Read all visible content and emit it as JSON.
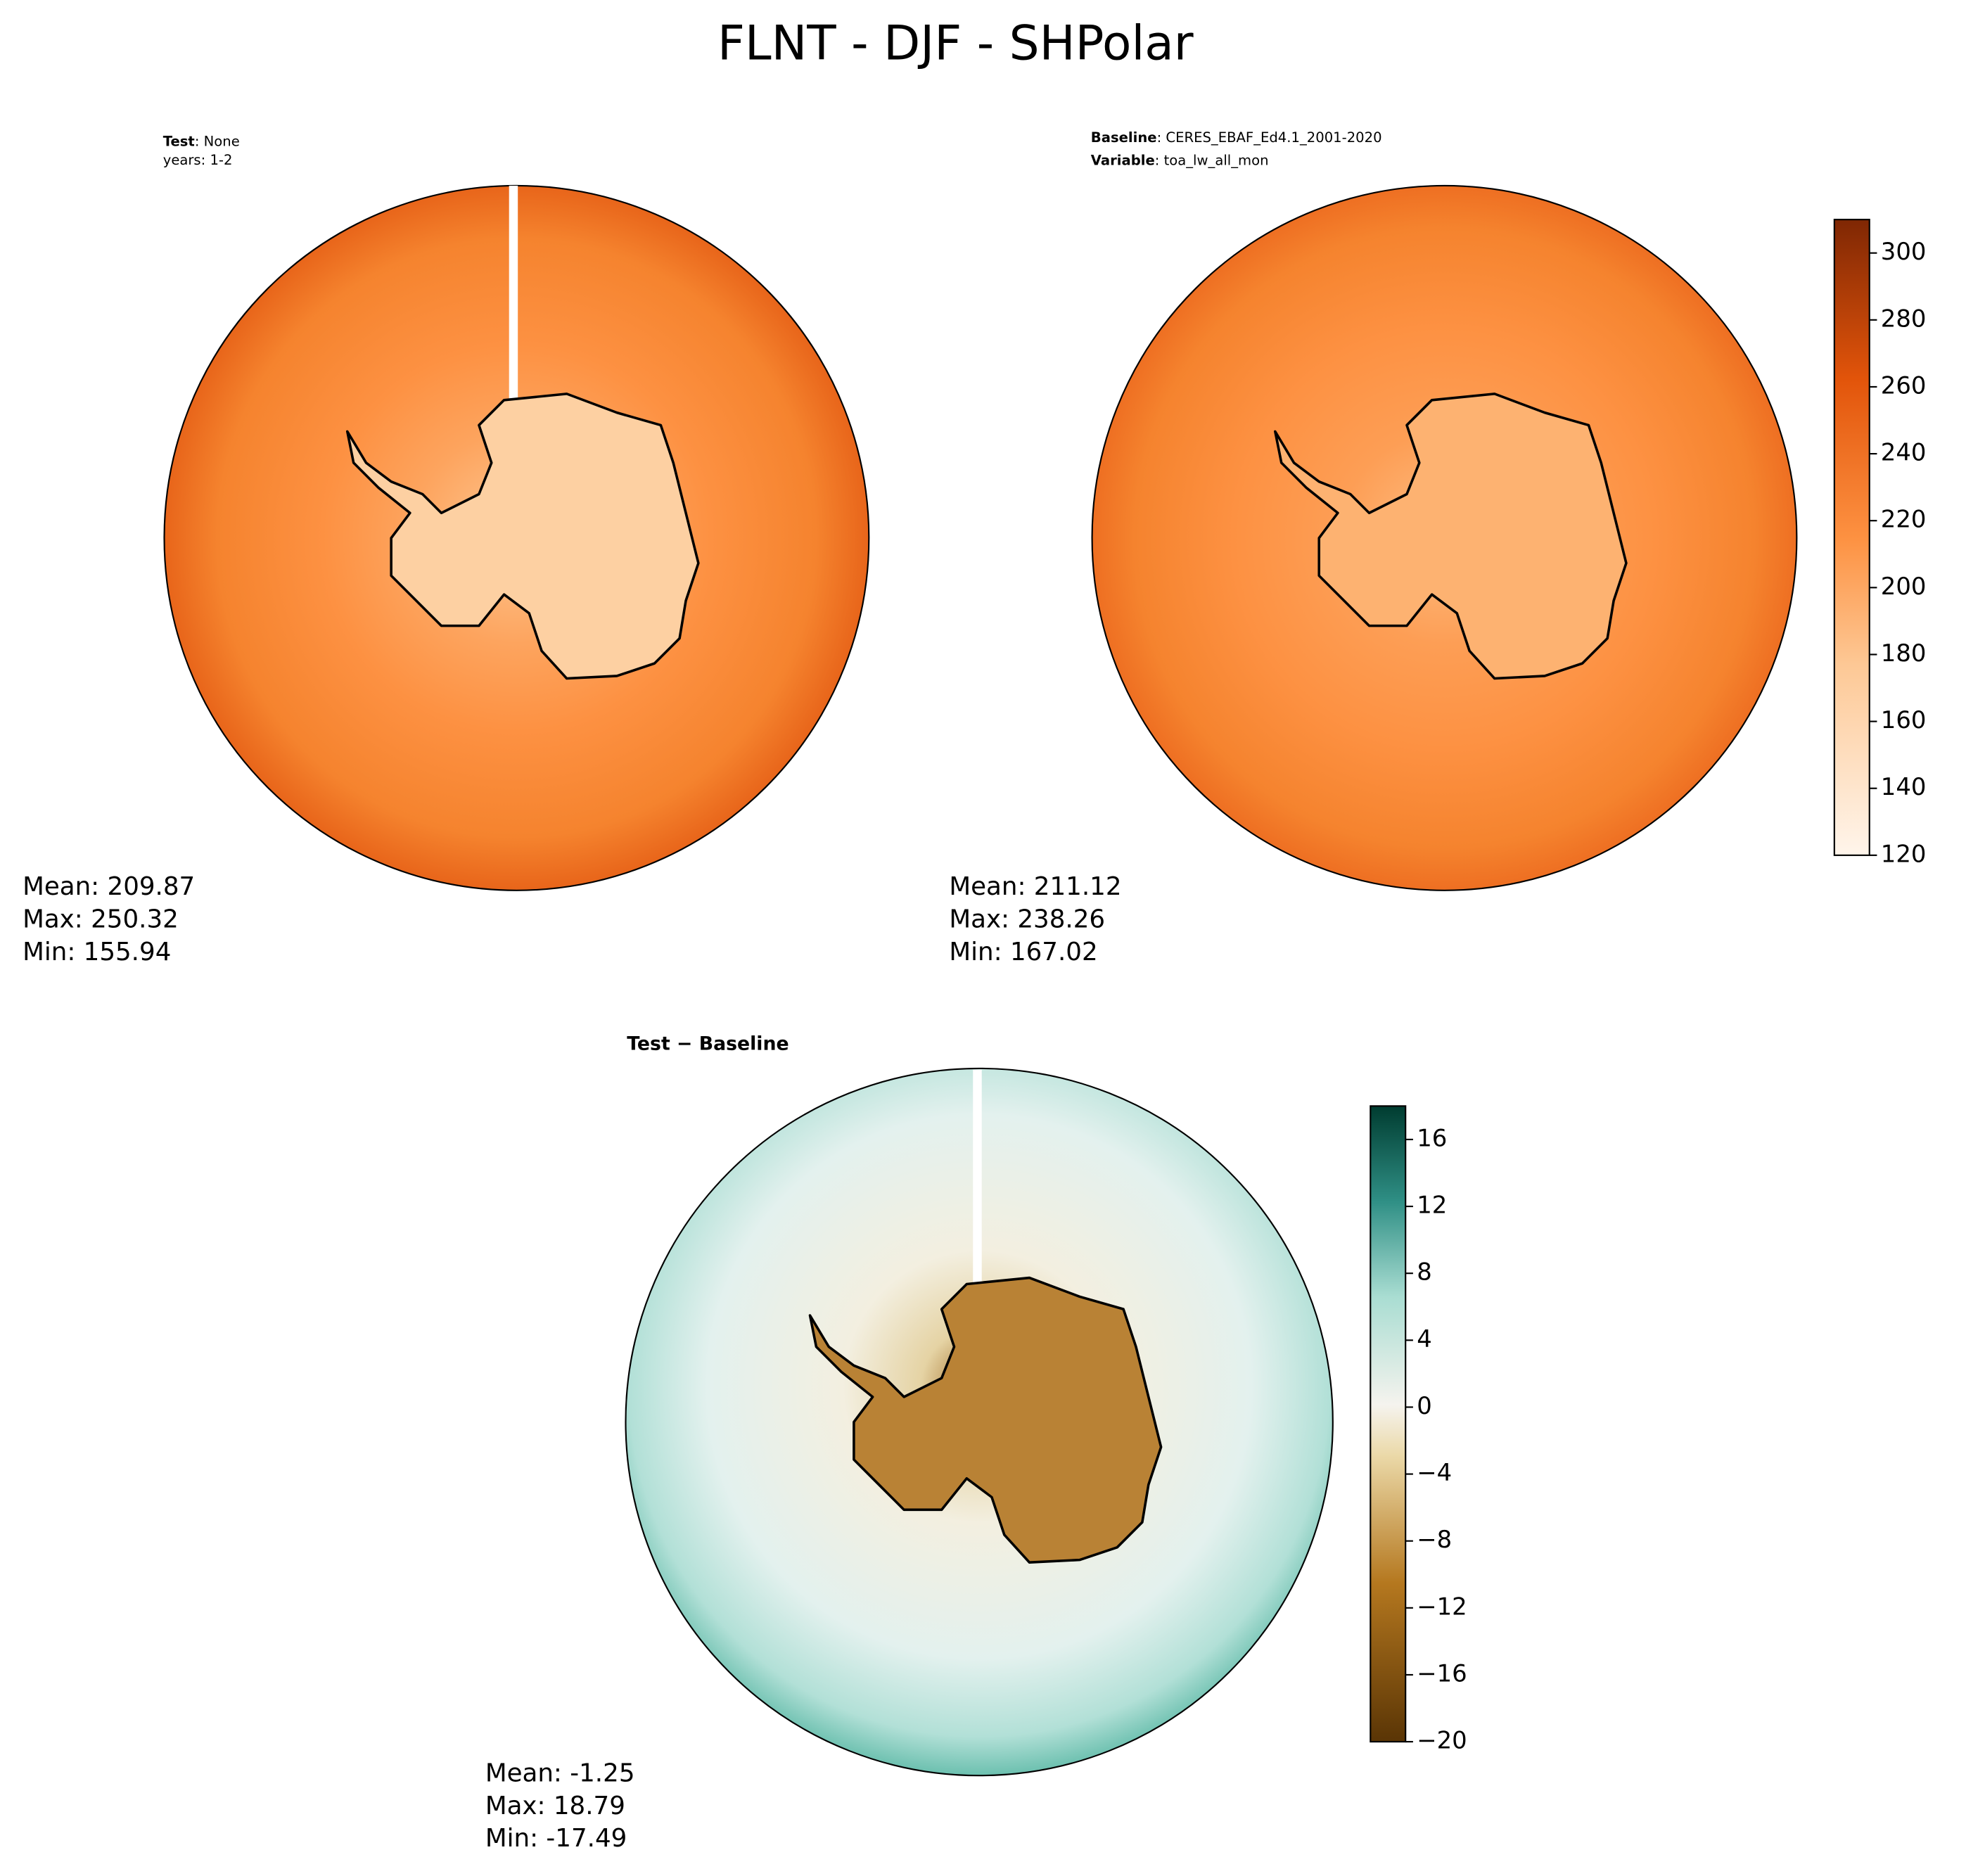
{
  "title": "FLNT - DJF - SHPolar",
  "panels": [
    {
      "header": [
        {
          "key": "Test",
          "value": ": None"
        },
        {
          "key": null,
          "value": "years: 1-2"
        }
      ],
      "stats": [
        "Mean: 209.87",
        "Max: 250.32",
        "Min: 155.94"
      ]
    },
    {
      "header": [
        {
          "key": "Baseline",
          "value": ": CERES_EBAF_Ed4.1_2001-2020"
        },
        {
          "key": "Variable",
          "value": ": toa_lw_all_mon"
        }
      ],
      "stats": [
        "Mean: 211.12",
        "Max: 238.26",
        "Min: 167.02"
      ]
    },
    {
      "title": "Test − Baseline",
      "stats": [
        "Mean: -1.25",
        "Max: 18.79",
        "Min: -17.49"
      ]
    }
  ],
  "colorbars": [
    {
      "ylim": [
        120,
        310
      ],
      "yticks": [
        120,
        140,
        160,
        180,
        200,
        220,
        240,
        260,
        280,
        300
      ]
    },
    {
      "ylim": [
        -20,
        18
      ],
      "yticks": [
        {
          "value": -20,
          "label": "−20"
        },
        {
          "value": -16,
          "label": "−16"
        },
        {
          "value": -12,
          "label": "−12"
        },
        {
          "value": -8,
          "label": "−8"
        },
        {
          "value": -4,
          "label": "−4"
        },
        0,
        4,
        8,
        12,
        16
      ]
    }
  ]
}
